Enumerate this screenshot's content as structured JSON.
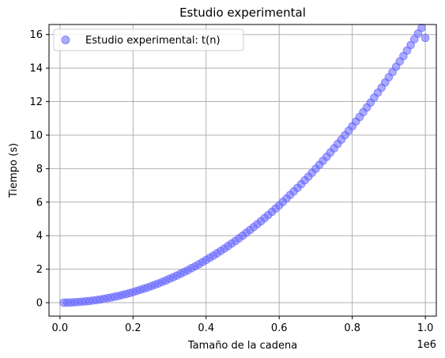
{
  "chart_data": {
    "type": "scatter",
    "title": "Estudio experimental",
    "xlabel": "Tamaño de la cadena",
    "ylabel": "Tiempo (s)",
    "x_multiplier_label": "1e6",
    "xlim": [
      -0.03,
      1.03
    ],
    "ylim": [
      -0.8,
      16.6
    ],
    "xticks": [
      0.0,
      0.2,
      0.4,
      0.6,
      0.8,
      1.0
    ],
    "xtick_labels": [
      "0.0",
      "0.2",
      "0.4",
      "0.6",
      "0.8",
      "1.0"
    ],
    "yticks": [
      0,
      2,
      4,
      6,
      8,
      10,
      12,
      14,
      16
    ],
    "ytick_labels": [
      "0",
      "2",
      "4",
      "6",
      "8",
      "10",
      "12",
      "14",
      "16"
    ],
    "grid": true,
    "legend_position": "top-left",
    "marker_color": "#6666ff",
    "series": [
      {
        "name": "Estudio experimental: t(n)",
        "x": [
          0.01,
          0.02,
          0.03,
          0.04,
          0.05,
          0.06,
          0.07,
          0.08,
          0.09,
          0.1,
          0.11,
          0.12,
          0.13,
          0.14,
          0.15,
          0.16,
          0.17,
          0.18,
          0.19,
          0.2,
          0.21,
          0.22,
          0.23,
          0.24,
          0.25,
          0.26,
          0.27,
          0.28,
          0.29,
          0.3,
          0.31,
          0.32,
          0.33,
          0.34,
          0.35,
          0.36,
          0.37,
          0.38,
          0.39,
          0.4,
          0.41,
          0.42,
          0.43,
          0.44,
          0.45,
          0.46,
          0.47,
          0.48,
          0.49,
          0.5,
          0.51,
          0.52,
          0.53,
          0.54,
          0.55,
          0.56,
          0.57,
          0.58,
          0.59,
          0.6,
          0.61,
          0.62,
          0.63,
          0.64,
          0.65,
          0.66,
          0.67,
          0.68,
          0.69,
          0.7,
          0.71,
          0.72,
          0.73,
          0.74,
          0.75,
          0.76,
          0.77,
          0.78,
          0.79,
          0.8,
          0.81,
          0.82,
          0.83,
          0.84,
          0.85,
          0.86,
          0.87,
          0.88,
          0.89,
          0.9,
          0.91,
          0.92,
          0.93,
          0.94,
          0.95,
          0.96,
          0.97,
          0.98,
          0.99,
          1.0
        ],
        "y": [
          0.0,
          0.01,
          0.01,
          0.03,
          0.04,
          0.06,
          0.08,
          0.1,
          0.13,
          0.16,
          0.19,
          0.23,
          0.27,
          0.31,
          0.36,
          0.4,
          0.46,
          0.51,
          0.57,
          0.63,
          0.7,
          0.77,
          0.84,
          0.91,
          0.99,
          1.07,
          1.15,
          1.24,
          1.33,
          1.43,
          1.52,
          1.62,
          1.73,
          1.83,
          1.94,
          2.06,
          2.17,
          2.29,
          2.42,
          2.55,
          2.68,
          2.81,
          2.95,
          3.09,
          3.23,
          3.38,
          3.53,
          3.68,
          3.84,
          4.0,
          4.17,
          4.34,
          4.51,
          4.68,
          4.86,
          5.05,
          5.23,
          5.42,
          5.62,
          5.81,
          6.01,
          6.22,
          6.43,
          6.64,
          6.85,
          7.07,
          7.3,
          7.52,
          7.75,
          7.99,
          8.23,
          8.47,
          8.71,
          8.96,
          9.21,
          9.47,
          9.73,
          9.99,
          10.26,
          10.53,
          10.81,
          11.08,
          11.37,
          11.65,
          11.94,
          12.24,
          12.53,
          12.83,
          13.14,
          13.45,
          13.76,
          14.08,
          14.4,
          14.72,
          15.05,
          15.38,
          15.72,
          16.06,
          16.4,
          15.8
        ],
        "note": ""
      }
    ]
  }
}
